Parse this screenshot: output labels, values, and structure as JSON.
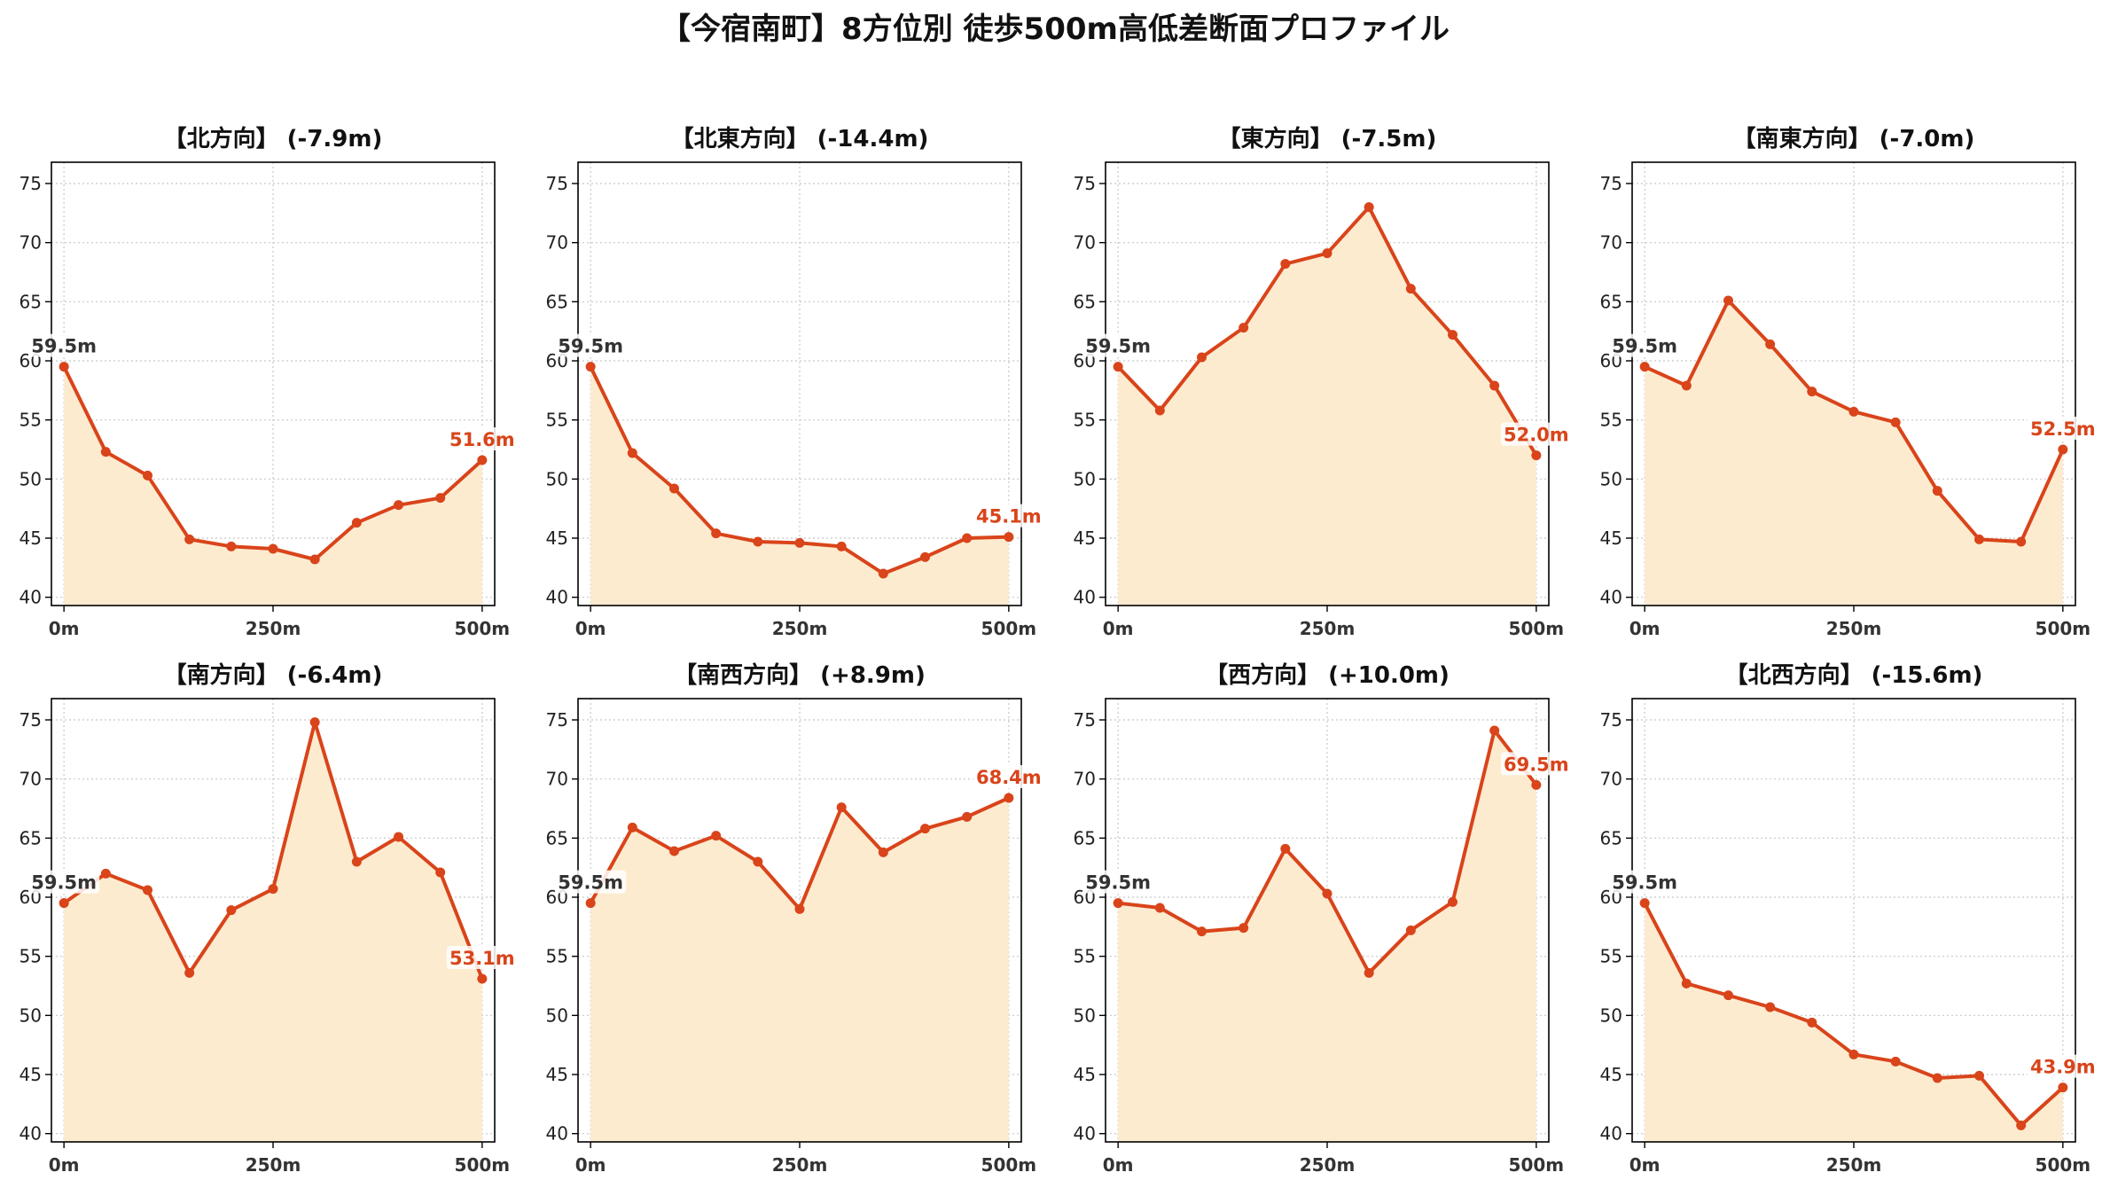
{
  "title": "【今宿南町】8方位別 徒歩500m高低差断面プロファイル",
  "colors": {
    "line": "#d9441a",
    "fill": "#fdebd0",
    "start_label": "#333333",
    "end_label": "#d9441a",
    "grid": "#c8c8c8"
  },
  "chart_data": [
    {
      "type": "line",
      "title": "【北方向】 (-7.9m)",
      "x": [
        0,
        50,
        100,
        150,
        200,
        250,
        300,
        350,
        400,
        450,
        500
      ],
      "y": [
        59.5,
        52.3,
        50.3,
        44.9,
        44.3,
        44.1,
        43.2,
        46.3,
        47.8,
        48.4,
        51.6
      ],
      "start_label": "59.5m",
      "end_label": "51.6m",
      "xticks": [
        0,
        250,
        500
      ],
      "xtick_labels": [
        "0m",
        "250m",
        "500m"
      ],
      "yticks": [
        40,
        45,
        50,
        55,
        60,
        65,
        70,
        75
      ],
      "xlim": [
        -15,
        515
      ],
      "ylim": [
        39.3,
        76.8
      ],
      "grid": true
    },
    {
      "type": "line",
      "title": "【北東方向】 (-14.4m)",
      "x": [
        0,
        50,
        100,
        150,
        200,
        250,
        300,
        350,
        400,
        450,
        500
      ],
      "y": [
        59.5,
        52.2,
        49.2,
        45.4,
        44.7,
        44.6,
        44.3,
        42.0,
        43.4,
        45.0,
        45.1
      ],
      "start_label": "59.5m",
      "end_label": "45.1m",
      "xticks": [
        0,
        250,
        500
      ],
      "xtick_labels": [
        "0m",
        "250m",
        "500m"
      ],
      "yticks": [
        40,
        45,
        50,
        55,
        60,
        65,
        70,
        75
      ],
      "xlim": [
        -15,
        515
      ],
      "ylim": [
        39.3,
        76.8
      ],
      "grid": true
    },
    {
      "type": "line",
      "title": "【東方向】 (-7.5m)",
      "x": [
        0,
        50,
        100,
        150,
        200,
        250,
        300,
        350,
        400,
        450,
        500
      ],
      "y": [
        59.5,
        55.8,
        60.3,
        62.8,
        68.2,
        69.1,
        73.0,
        66.1,
        62.2,
        57.9,
        52.0
      ],
      "start_label": "59.5m",
      "end_label": "52.0m",
      "xticks": [
        0,
        250,
        500
      ],
      "xtick_labels": [
        "0m",
        "250m",
        "500m"
      ],
      "yticks": [
        40,
        45,
        50,
        55,
        60,
        65,
        70,
        75
      ],
      "xlim": [
        -15,
        515
      ],
      "ylim": [
        39.3,
        76.8
      ],
      "grid": true
    },
    {
      "type": "line",
      "title": "【南東方向】 (-7.0m)",
      "x": [
        0,
        50,
        100,
        150,
        200,
        250,
        300,
        350,
        400,
        450,
        500
      ],
      "y": [
        59.5,
        57.9,
        65.1,
        61.4,
        57.4,
        55.7,
        54.8,
        49.0,
        44.9,
        44.7,
        52.5
      ],
      "start_label": "59.5m",
      "end_label": "52.5m",
      "xticks": [
        0,
        250,
        500
      ],
      "xtick_labels": [
        "0m",
        "250m",
        "500m"
      ],
      "yticks": [
        40,
        45,
        50,
        55,
        60,
        65,
        70,
        75
      ],
      "xlim": [
        -15,
        515
      ],
      "ylim": [
        39.3,
        76.8
      ],
      "grid": true
    },
    {
      "type": "line",
      "title": "【南方向】 (-6.4m)",
      "x": [
        0,
        50,
        100,
        150,
        200,
        250,
        300,
        350,
        400,
        450,
        500
      ],
      "y": [
        59.5,
        62.0,
        60.6,
        53.6,
        58.9,
        60.7,
        74.8,
        63.0,
        65.1,
        62.1,
        53.1
      ],
      "start_label": "59.5m",
      "end_label": "53.1m",
      "xticks": [
        0,
        250,
        500
      ],
      "xtick_labels": [
        "0m",
        "250m",
        "500m"
      ],
      "yticks": [
        40,
        45,
        50,
        55,
        60,
        65,
        70,
        75
      ],
      "xlim": [
        -15,
        515
      ],
      "ylim": [
        39.3,
        76.8
      ],
      "grid": true
    },
    {
      "type": "line",
      "title": "【南西方向】 (+8.9m)",
      "x": [
        0,
        50,
        100,
        150,
        200,
        250,
        300,
        350,
        400,
        450,
        500
      ],
      "y": [
        59.5,
        65.9,
        63.9,
        65.2,
        63.0,
        59.0,
        67.6,
        63.8,
        65.8,
        66.8,
        68.4
      ],
      "start_label": "59.5m",
      "end_label": "68.4m",
      "xticks": [
        0,
        250,
        500
      ],
      "xtick_labels": [
        "0m",
        "250m",
        "500m"
      ],
      "yticks": [
        40,
        45,
        50,
        55,
        60,
        65,
        70,
        75
      ],
      "xlim": [
        -15,
        515
      ],
      "ylim": [
        39.3,
        76.8
      ],
      "grid": true
    },
    {
      "type": "line",
      "title": "【西方向】 (+10.0m)",
      "x": [
        0,
        50,
        100,
        150,
        200,
        250,
        300,
        350,
        400,
        450,
        500
      ],
      "y": [
        59.5,
        59.1,
        57.1,
        57.4,
        64.1,
        60.3,
        53.6,
        57.2,
        59.6,
        74.1,
        69.5
      ],
      "start_label": "59.5m",
      "end_label": "69.5m",
      "xticks": [
        0,
        250,
        500
      ],
      "xtick_labels": [
        "0m",
        "250m",
        "500m"
      ],
      "yticks": [
        40,
        45,
        50,
        55,
        60,
        65,
        70,
        75
      ],
      "xlim": [
        -15,
        515
      ],
      "ylim": [
        39.3,
        76.8
      ],
      "grid": true
    },
    {
      "type": "line",
      "title": "【北西方向】 (-15.6m)",
      "x": [
        0,
        50,
        100,
        150,
        200,
        250,
        300,
        350,
        400,
        450,
        500
      ],
      "y": [
        59.5,
        52.7,
        51.7,
        50.7,
        49.4,
        46.7,
        46.1,
        44.7,
        44.9,
        40.7,
        43.9
      ],
      "start_label": "59.5m",
      "end_label": "43.9m",
      "xticks": [
        0,
        250,
        500
      ],
      "xtick_labels": [
        "0m",
        "250m",
        "500m"
      ],
      "yticks": [
        40,
        45,
        50,
        55,
        60,
        65,
        70,
        75
      ],
      "xlim": [
        -15,
        515
      ],
      "ylim": [
        39.3,
        76.8
      ],
      "grid": true
    }
  ]
}
